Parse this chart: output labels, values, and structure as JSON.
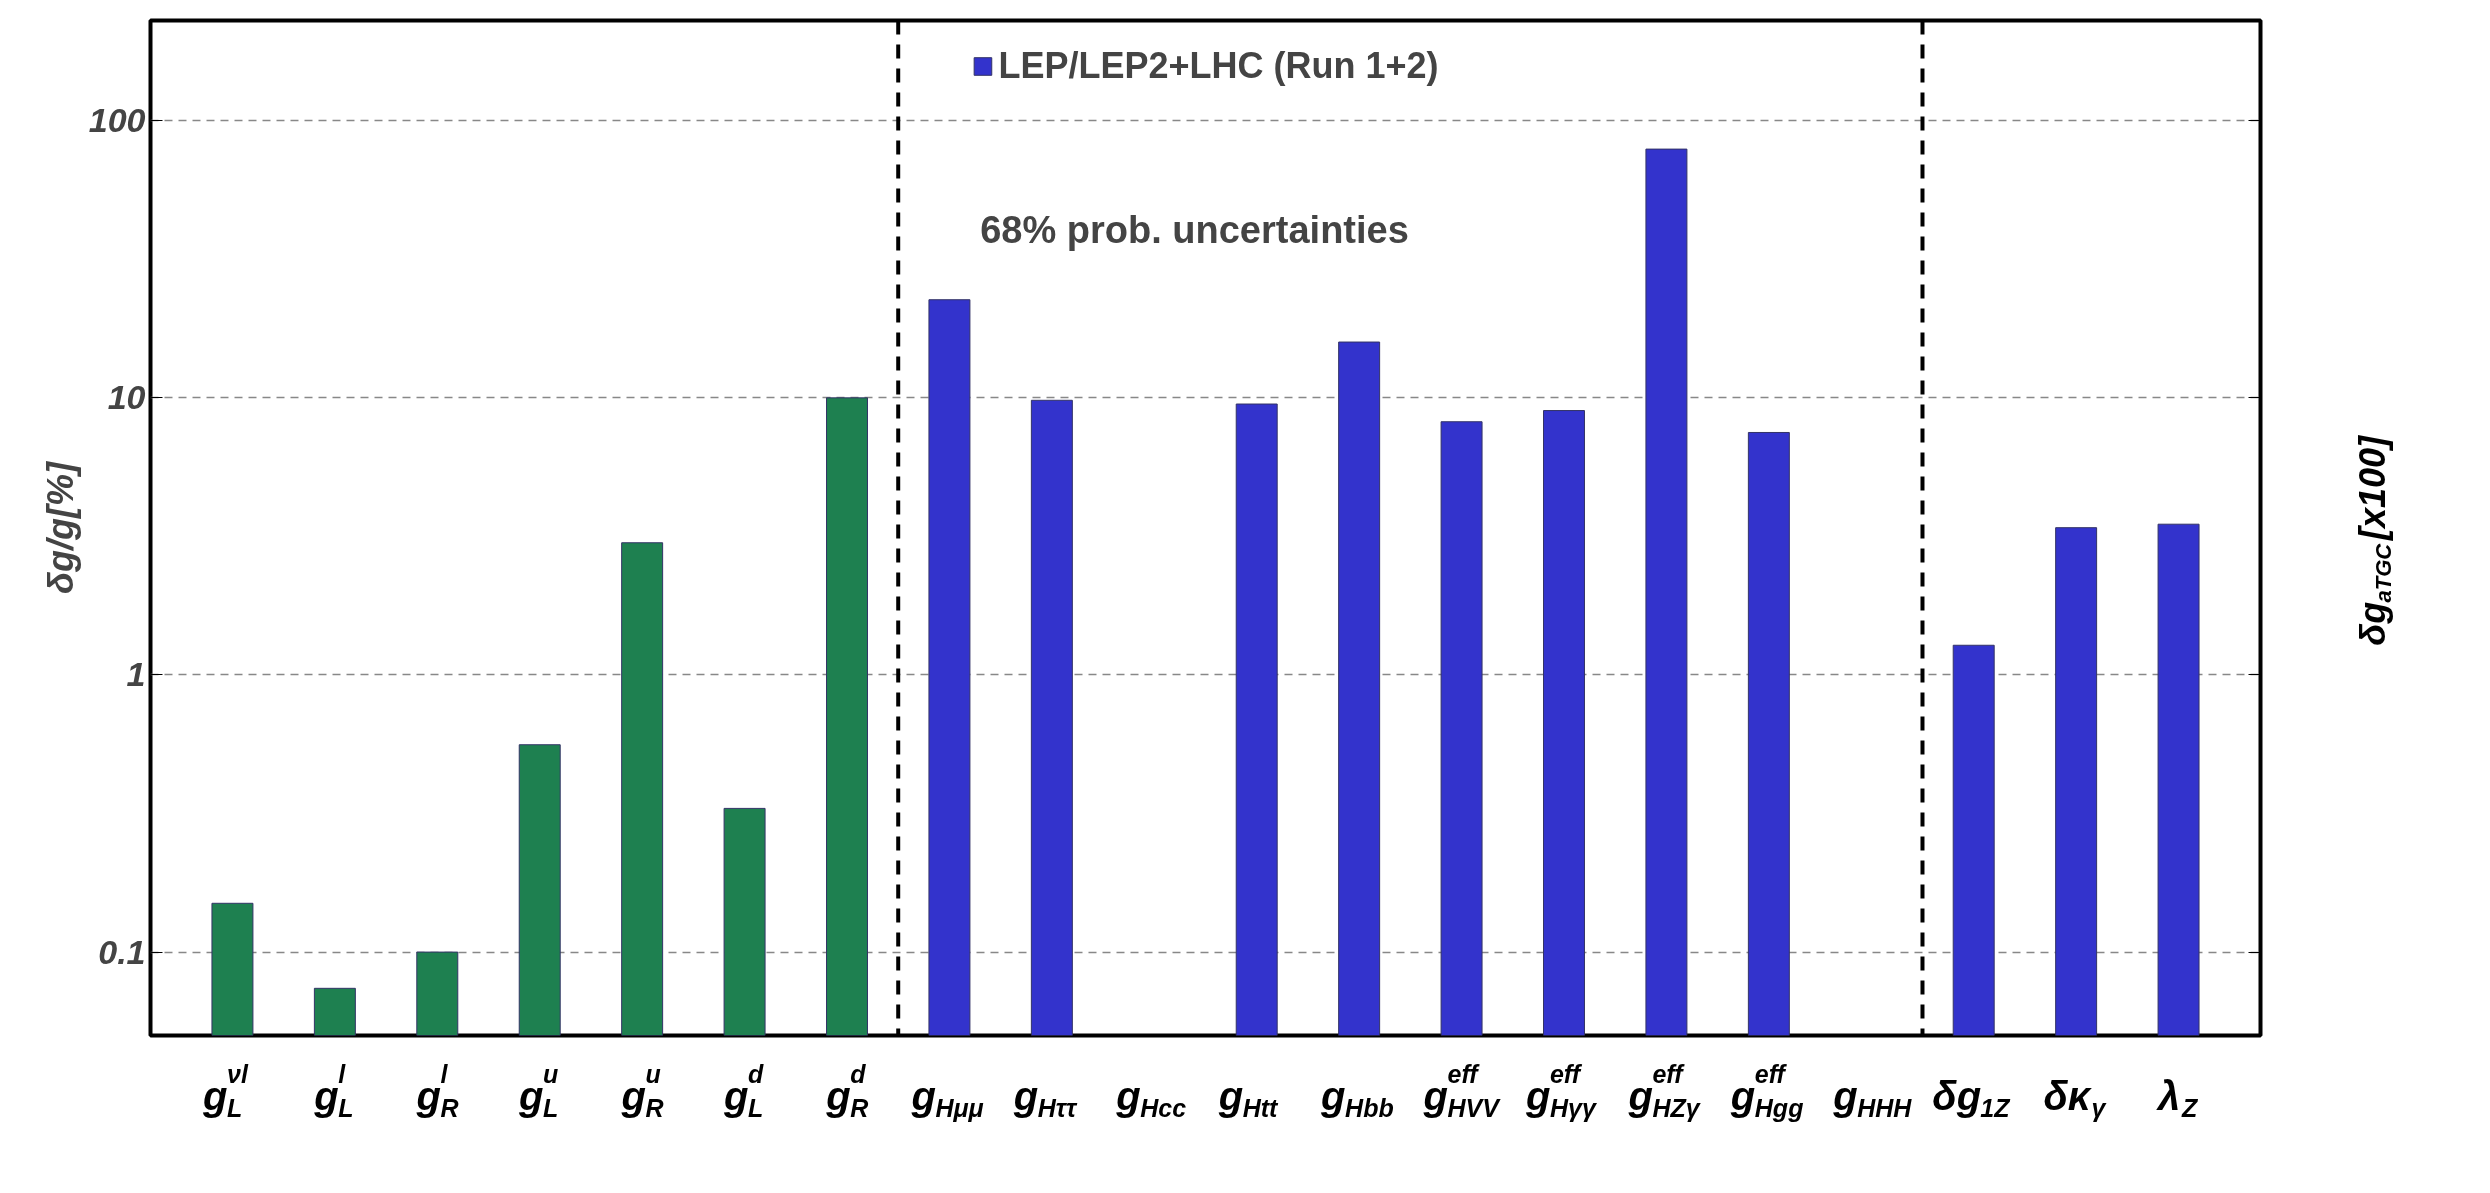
{
  "chart_data": {
    "type": "bar",
    "ylabel": "δg/g[%]",
    "y2label": "δg$_{aTGC}$[x100]",
    "categories": [
      "g$^{νl}$$_{L}$",
      "g$^{l}$$_{L}$",
      "g$^{l}$$_{R}$",
      "g$^{u}$$_{L}$",
      "g$^{u}$$_{R}$",
      "g$^{d}$$_{L}$",
      "g$^{d}$$_{R}$",
      "g$_{Hμμ}$",
      "g$_{Hττ}$",
      "g$_{Hcc}$",
      "g$_{Htt}$",
      "g$_{Hbb}$",
      "g$^{eff}$$_{HVV}$",
      "g$^{eff}$$_{Hγγ}$",
      "g$^{eff}$$_{HZγ}$",
      "g$^{eff}$$_{Hgg}$",
      "g$_{HHH}$",
      "δg$_{1Z}$",
      "δκ$_{γ}$",
      "λ$_{Z}$"
    ],
    "series": [
      {
        "color": "#1e8050",
        "values": [
          0.15,
          0.074,
          0.1,
          0.56,
          3.0,
          0.33,
          10,
          null,
          null,
          null,
          null,
          null,
          null,
          null,
          null,
          null,
          null,
          null,
          null,
          null
        ]
      },
      {
        "name": "LEP/LEP2+LHC (Run 1+2)",
        "color": "#3333cc",
        "values": [
          null,
          null,
          null,
          null,
          null,
          null,
          null,
          22.6,
          9.8,
          null,
          9.5,
          15.9,
          8.2,
          9.0,
          79,
          7.5,
          null,
          1.28,
          3.4,
          3.5
        ]
      }
    ],
    "log": "y",
    "ylim": [
      0.05,
      230
    ],
    "yticks": [
      0.1,
      1,
      10,
      100
    ],
    "grid": "y",
    "legend": "top",
    "annotations": [
      "68% prob. uncertainties"
    ]
  }
}
